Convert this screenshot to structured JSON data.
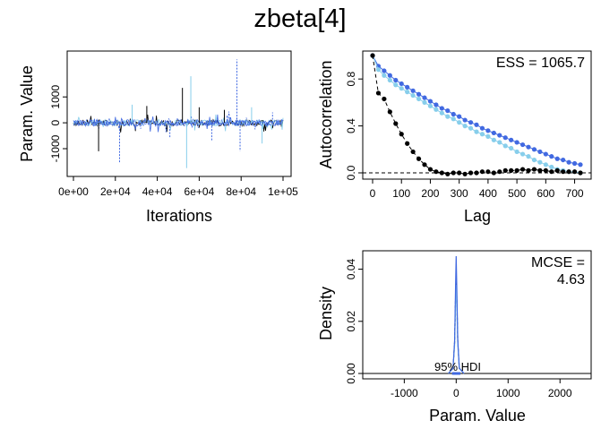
{
  "title": "zbeta[4]",
  "chart_data": [
    {
      "type": "line",
      "panel": "trace",
      "xlabel": "Iterations",
      "ylabel": "Param. Value",
      "xlim": [
        0,
        100000
      ],
      "ylim": [
        -1900,
        2600
      ],
      "x_ticks": [
        "0e+00",
        "2e+04",
        "4e+04",
        "6e+04",
        "8e+04",
        "1e+05"
      ],
      "y_ticks": [
        "-1000",
        "0",
        "1000"
      ],
      "colors": [
        "#000000",
        "#87CEEB",
        "#4169E1",
        "#4169E1"
      ],
      "spikes": [
        {
          "x": 12000,
          "y": -1100,
          "chain": 0
        },
        {
          "x": 22000,
          "y": -1550,
          "chain": 2
        },
        {
          "x": 28000,
          "y": 700,
          "chain": 1
        },
        {
          "x": 35000,
          "y": 650,
          "chain": 0
        },
        {
          "x": 46000,
          "y": -600,
          "chain": 2
        },
        {
          "x": 52000,
          "y": 1350,
          "chain": 0
        },
        {
          "x": 54000,
          "y": -1750,
          "chain": 1
        },
        {
          "x": 56000,
          "y": 1800,
          "chain": 1
        },
        {
          "x": 60000,
          "y": 600,
          "chain": 0
        },
        {
          "x": 66000,
          "y": -700,
          "chain": 2
        },
        {
          "x": 72000,
          "y": 500,
          "chain": 0
        },
        {
          "x": 78000,
          "y": 2450,
          "chain": 3
        },
        {
          "x": 79500,
          "y": -1100,
          "chain": 3
        },
        {
          "x": 85000,
          "y": 600,
          "chain": 1
        },
        {
          "x": 90000,
          "y": -800,
          "chain": 1
        },
        {
          "x": 95000,
          "y": 400,
          "chain": 2
        }
      ]
    },
    {
      "type": "line",
      "panel": "autocorrelation",
      "xlabel": "Lag",
      "ylabel": "Autocorrelation",
      "xlim": [
        0,
        720
      ],
      "ylim": [
        0,
        1
      ],
      "x_ticks": [
        "0",
        "100",
        "200",
        "300",
        "400",
        "500",
        "600",
        "700"
      ],
      "y_ticks": [
        "0.0",
        "0.4",
        "0.8"
      ],
      "annotation": "ESS = 1065.7",
      "series": [
        {
          "color": "#000000",
          "lags": [
            0,
            20,
            40,
            60,
            80,
            100,
            120,
            140,
            160,
            180,
            200,
            220,
            240,
            260,
            280,
            300,
            320,
            340,
            360,
            380,
            400,
            420,
            440,
            460,
            480,
            500,
            520,
            540,
            560,
            580,
            600,
            620,
            640,
            660,
            680,
            700,
            720
          ],
          "values": [
            1.0,
            0.68,
            0.63,
            0.52,
            0.42,
            0.33,
            0.25,
            0.18,
            0.12,
            0.07,
            0.03,
            0.01,
            0.0,
            -0.01,
            0.0,
            0.0,
            -0.01,
            0.0,
            0.0,
            0.01,
            0.01,
            0.0,
            0.01,
            0.02,
            0.02,
            0.02,
            0.03,
            0.02,
            0.03,
            0.02,
            0.02,
            0.01,
            0.02,
            0.01,
            0.01,
            0.01,
            0.0
          ]
        },
        {
          "color": "#87CEEB",
          "lags": [
            0,
            20,
            40,
            60,
            80,
            100,
            120,
            140,
            160,
            180,
            200,
            220,
            240,
            260,
            280,
            300,
            320,
            340,
            360,
            380,
            400,
            420,
            440,
            460,
            480,
            500,
            520,
            540,
            560,
            580,
            600,
            620,
            640,
            660,
            680,
            700,
            720
          ],
          "values": [
            1.0,
            0.88,
            0.83,
            0.79,
            0.75,
            0.72,
            0.69,
            0.66,
            0.63,
            0.6,
            0.57,
            0.54,
            0.51,
            0.48,
            0.46,
            0.43,
            0.4,
            0.38,
            0.35,
            0.33,
            0.31,
            0.28,
            0.26,
            0.23,
            0.21,
            0.18,
            0.16,
            0.14,
            0.11,
            0.09,
            0.07,
            0.05,
            0.03,
            0.02,
            0.01,
            0.01,
            0.0
          ]
        },
        {
          "color": "#4169E1",
          "lags": [
            0,
            20,
            40,
            60,
            80,
            100,
            120,
            140,
            160,
            180,
            200,
            220,
            240,
            260,
            280,
            300,
            320,
            340,
            360,
            380,
            400,
            420,
            440,
            460,
            480,
            500,
            520,
            540,
            560,
            580,
            600,
            620,
            640,
            660,
            680,
            700,
            720
          ],
          "values": [
            1.0,
            0.91,
            0.87,
            0.83,
            0.79,
            0.76,
            0.73,
            0.7,
            0.67,
            0.64,
            0.61,
            0.58,
            0.55,
            0.53,
            0.5,
            0.48,
            0.45,
            0.43,
            0.41,
            0.38,
            0.36,
            0.34,
            0.32,
            0.3,
            0.28,
            0.26,
            0.24,
            0.22,
            0.2,
            0.18,
            0.16,
            0.14,
            0.12,
            0.11,
            0.09,
            0.08,
            0.07
          ]
        }
      ]
    },
    {
      "type": "area",
      "panel": "density",
      "xlabel": "Param. Value",
      "ylabel": "Density",
      "xlim": [
        -1800,
        2600
      ],
      "ylim": [
        -0.002,
        0.046
      ],
      "x_ticks": [
        "-1000",
        "0",
        "1000",
        "2000"
      ],
      "y_ticks": [
        "0.00",
        "0.02",
        "0.04"
      ],
      "annotation_line1": "MCSE =",
      "annotation_line2": "4.63",
      "hdi_label": "95% HDI",
      "hdi": [
        -80,
        80
      ],
      "series": [
        {
          "color": "#000000",
          "x": [
            -150,
            -60,
            -30,
            -10,
            0,
            10,
            30,
            60,
            150
          ],
          "y": [
            0,
            0.002,
            0.012,
            0.03,
            0.037,
            0.03,
            0.012,
            0.002,
            0
          ]
        },
        {
          "color": "#87CEEB",
          "x": [
            -150,
            -60,
            -30,
            -10,
            0,
            10,
            30,
            60,
            150
          ],
          "y": [
            0,
            0.002,
            0.011,
            0.028,
            0.034,
            0.028,
            0.011,
            0.002,
            0
          ]
        },
        {
          "color": "#4169E1",
          "x": [
            -150,
            -60,
            -30,
            -10,
            0,
            10,
            30,
            60,
            150
          ],
          "y": [
            0,
            0.002,
            0.013,
            0.035,
            0.045,
            0.035,
            0.013,
            0.002,
            0
          ]
        }
      ]
    }
  ]
}
